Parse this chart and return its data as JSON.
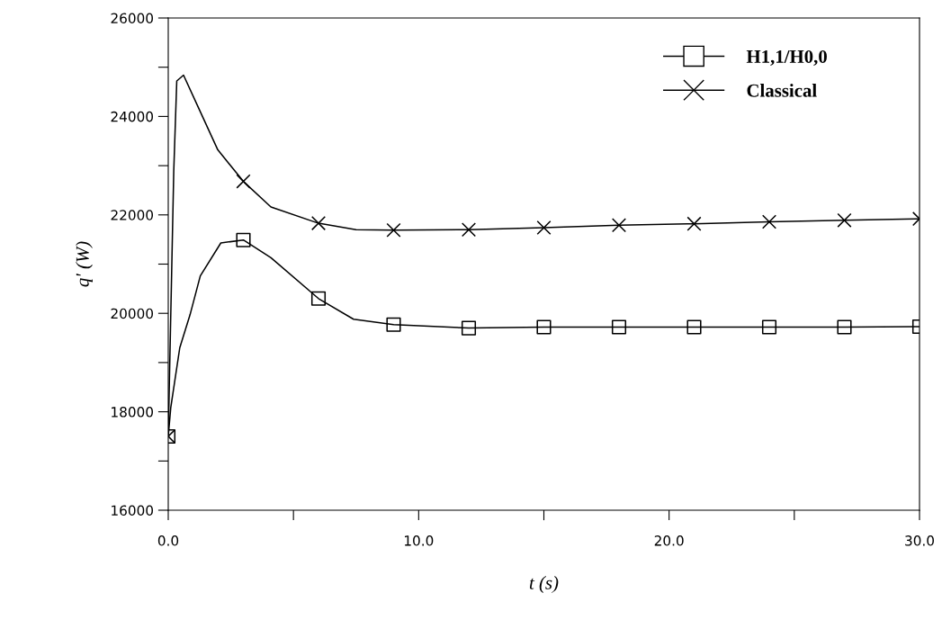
{
  "chart_data": {
    "type": "line",
    "xlabel": "t (s)",
    "ylabel": "q' (W)",
    "xlim": [
      0,
      30
    ],
    "ylim": [
      16000,
      26000
    ],
    "xticks": [
      {
        "value": 0,
        "label": "0.0"
      },
      {
        "value": 5,
        "label": null
      },
      {
        "value": 10,
        "label": "10.0"
      },
      {
        "value": 15,
        "label": null
      },
      {
        "value": 20,
        "label": "20.0"
      },
      {
        "value": 25,
        "label": null
      },
      {
        "value": 30,
        "label": "30.0"
      }
    ],
    "yticks": [
      16000,
      {
        "value": 17000,
        "label": null
      },
      18000,
      {
        "value": 19000,
        "label": null
      },
      20000,
      {
        "value": 21000,
        "label": null
      },
      22000,
      {
        "value": 23000,
        "label": null
      },
      24000,
      {
        "value": 25000,
        "label": null
      },
      26000
    ],
    "grid": false,
    "legend": "top right",
    "series": [
      {
        "color": "#000000",
        "marker": "none",
        "x": [
          0,
          0.1,
          0.46,
          0.87,
          1.28,
          2.1,
          3,
          4.1,
          6,
          7.4,
          9,
          12,
          15,
          18,
          21,
          24,
          27,
          30
        ],
        "values": [
          17500,
          18080,
          19300,
          19970,
          20760,
          21430,
          21490,
          21130,
          20300,
          19880,
          19770,
          19700,
          19720,
          19720,
          19720,
          19720,
          19720,
          19730
        ]
      },
      {
        "type": "scatter",
        "name": "H1,1/H0,0",
        "color": "#000000",
        "marker": "square",
        "x": [
          0,
          3,
          6,
          9,
          12,
          15,
          18,
          21,
          24,
          27,
          30
        ],
        "values": [
          17500,
          21490,
          20300,
          19770,
          19700,
          19720,
          19720,
          19720,
          19720,
          19720,
          19730
        ]
      },
      {
        "color": "#000000",
        "marker": "none",
        "x": [
          0,
          0.22,
          0.34,
          0.61,
          1.16,
          1.98,
          3,
          4.1,
          6,
          7.5,
          9,
          12,
          15,
          18,
          21,
          24,
          27,
          30
        ],
        "values": [
          17500,
          22890,
          24720,
          24840,
          24230,
          23320,
          22680,
          22160,
          21830,
          21700,
          21690,
          21700,
          21740,
          21790,
          21820,
          21860,
          21890,
          21920
        ]
      },
      {
        "type": "scatter",
        "name": "Classical",
        "color": "#000000",
        "marker": "cross",
        "x": [
          0,
          3,
          6,
          9,
          12,
          15,
          18,
          21,
          24,
          27,
          30
        ],
        "values": [
          17500,
          22680,
          21830,
          21690,
          21700,
          21740,
          21790,
          21820,
          21860,
          21890,
          21920
        ]
      }
    ]
  }
}
